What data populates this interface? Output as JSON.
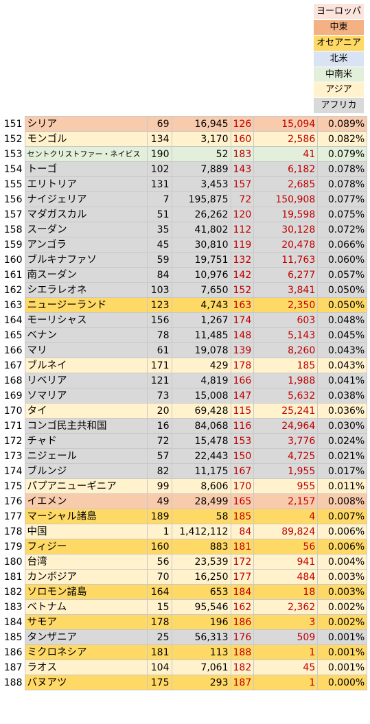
{
  "legend": [
    {
      "label": "ヨーロッパ",
      "color": "#fbe4dc"
    },
    {
      "label": "中東",
      "color": "#f4b183"
    },
    {
      "label": "オセアニア",
      "color": "#ffd966"
    },
    {
      "label": "北米",
      "color": "#dae3f3"
    },
    {
      "label": "中南米",
      "color": "#e2efda"
    },
    {
      "label": "アジア",
      "color": "#fff2cc"
    },
    {
      "label": "アフリカ",
      "color": "#d9d9d9"
    }
  ],
  "rows": [
    {
      "rank": "151",
      "name": "シリア",
      "c1": "69",
      "c2": "16,945",
      "c3": "126",
      "c4": "15,094",
      "c5": "0.089%",
      "color": "#f8cbad"
    },
    {
      "rank": "152",
      "name": "モンゴル",
      "c1": "134",
      "c2": "3,170",
      "c3": "160",
      "c4": "2,586",
      "c5": "0.082%",
      "color": "#fff2cc"
    },
    {
      "rank": "153",
      "name": "セントクリストファー・ネイビス",
      "c1": "190",
      "c2": "52",
      "c3": "183",
      "c4": "41",
      "c5": "0.079%",
      "color": "#e2efda",
      "small": true
    },
    {
      "rank": "154",
      "name": "トーゴ",
      "c1": "102",
      "c2": "7,889",
      "c3": "143",
      "c4": "6,182",
      "c5": "0.078%",
      "color": "#d9d9d9"
    },
    {
      "rank": "155",
      "name": "エリトリア",
      "c1": "131",
      "c2": "3,453",
      "c3": "157",
      "c4": "2,685",
      "c5": "0.078%",
      "color": "#d9d9d9"
    },
    {
      "rank": "156",
      "name": "ナイジェリア",
      "c1": "7",
      "c2": "195,875",
      "c3": "72",
      "c4": "150,908",
      "c5": "0.077%",
      "color": "#d9d9d9"
    },
    {
      "rank": "157",
      "name": "マダガスカル",
      "c1": "51",
      "c2": "26,262",
      "c3": "120",
      "c4": "19,598",
      "c5": "0.075%",
      "color": "#d9d9d9"
    },
    {
      "rank": "158",
      "name": "スーダン",
      "c1": "35",
      "c2": "41,802",
      "c3": "112",
      "c4": "30,128",
      "c5": "0.072%",
      "color": "#d9d9d9"
    },
    {
      "rank": "159",
      "name": "アンゴラ",
      "c1": "45",
      "c2": "30,810",
      "c3": "119",
      "c4": "20,478",
      "c5": "0.066%",
      "color": "#d9d9d9"
    },
    {
      "rank": "160",
      "name": "ブルキナファソ",
      "c1": "59",
      "c2": "19,751",
      "c3": "132",
      "c4": "11,763",
      "c5": "0.060%",
      "color": "#d9d9d9"
    },
    {
      "rank": "161",
      "name": "南スーダン",
      "c1": "84",
      "c2": "10,976",
      "c3": "142",
      "c4": "6,277",
      "c5": "0.057%",
      "color": "#d9d9d9"
    },
    {
      "rank": "162",
      "name": "シエラレオネ",
      "c1": "103",
      "c2": "7,650",
      "c3": "152",
      "c4": "3,841",
      "c5": "0.050%",
      "color": "#d9d9d9"
    },
    {
      "rank": "163",
      "name": "ニュージーランド",
      "c1": "123",
      "c2": "4,743",
      "c3": "163",
      "c4": "2,350",
      "c5": "0.050%",
      "color": "#ffd966"
    },
    {
      "rank": "164",
      "name": "モーリシャス",
      "c1": "156",
      "c2": "1,267",
      "c3": "174",
      "c4": "603",
      "c5": "0.048%",
      "color": "#d9d9d9"
    },
    {
      "rank": "165",
      "name": "ベナン",
      "c1": "78",
      "c2": "11,485",
      "c3": "148",
      "c4": "5,143",
      "c5": "0.045%",
      "color": "#d9d9d9"
    },
    {
      "rank": "166",
      "name": "マリ",
      "c1": "61",
      "c2": "19,078",
      "c3": "139",
      "c4": "8,260",
      "c5": "0.043%",
      "color": "#d9d9d9"
    },
    {
      "rank": "167",
      "name": "ブルネイ",
      "c1": "171",
      "c2": "429",
      "c3": "178",
      "c4": "185",
      "c5": "0.043%",
      "color": "#fff2cc"
    },
    {
      "rank": "168",
      "name": "リベリア",
      "c1": "121",
      "c2": "4,819",
      "c3": "166",
      "c4": "1,988",
      "c5": "0.041%",
      "color": "#d9d9d9"
    },
    {
      "rank": "169",
      "name": "ソマリア",
      "c1": "73",
      "c2": "15,008",
      "c3": "147",
      "c4": "5,632",
      "c5": "0.038%",
      "color": "#d9d9d9"
    },
    {
      "rank": "170",
      "name": "タイ",
      "c1": "20",
      "c2": "69,428",
      "c3": "115",
      "c4": "25,241",
      "c5": "0.036%",
      "color": "#fff2cc"
    },
    {
      "rank": "171",
      "name": "コンゴ民主共和国",
      "c1": "16",
      "c2": "84,068",
      "c3": "116",
      "c4": "24,964",
      "c5": "0.030%",
      "color": "#d9d9d9"
    },
    {
      "rank": "172",
      "name": "チャド",
      "c1": "72",
      "c2": "15,478",
      "c3": "153",
      "c4": "3,776",
      "c5": "0.024%",
      "color": "#d9d9d9"
    },
    {
      "rank": "173",
      "name": "ニジェール",
      "c1": "57",
      "c2": "22,443",
      "c3": "150",
      "c4": "4,725",
      "c5": "0.021%",
      "color": "#d9d9d9"
    },
    {
      "rank": "174",
      "name": "ブルンジ",
      "c1": "82",
      "c2": "11,175",
      "c3": "167",
      "c4": "1,955",
      "c5": "0.017%",
      "color": "#d9d9d9"
    },
    {
      "rank": "175",
      "name": "パプアニューギニア",
      "c1": "99",
      "c2": "8,606",
      "c3": "170",
      "c4": "955",
      "c5": "0.011%",
      "color": "#fff2cc"
    },
    {
      "rank": "176",
      "name": "イエメン",
      "c1": "49",
      "c2": "28,499",
      "c3": "165",
      "c4": "2,157",
      "c5": "0.008%",
      "color": "#f8cbad"
    },
    {
      "rank": "177",
      "name": "マーシャル諸島",
      "c1": "189",
      "c2": "58",
      "c3": "185",
      "c4": "4",
      "c5": "0.007%",
      "color": "#ffd966"
    },
    {
      "rank": "178",
      "name": "中国",
      "c1": "1",
      "c2": "1,412,112",
      "c3": "84",
      "c4": "89,824",
      "c5": "0.006%",
      "color": "#fff2cc"
    },
    {
      "rank": "179",
      "name": "フィジー",
      "c1": "160",
      "c2": "883",
      "c3": "181",
      "c4": "56",
      "c5": "0.006%",
      "color": "#ffd966"
    },
    {
      "rank": "180",
      "name": "台湾",
      "c1": "56",
      "c2": "23,539",
      "c3": "172",
      "c4": "941",
      "c5": "0.004%",
      "color": "#fff2cc"
    },
    {
      "rank": "181",
      "name": "カンボジア",
      "c1": "70",
      "c2": "16,250",
      "c3": "177",
      "c4": "484",
      "c5": "0.003%",
      "color": "#fff2cc"
    },
    {
      "rank": "182",
      "name": "ソロモン諸島",
      "c1": "164",
      "c2": "653",
      "c3": "184",
      "c4": "18",
      "c5": "0.003%",
      "color": "#ffd966"
    },
    {
      "rank": "183",
      "name": "ベトナム",
      "c1": "15",
      "c2": "95,546",
      "c3": "162",
      "c4": "2,362",
      "c5": "0.002%",
      "color": "#fff2cc"
    },
    {
      "rank": "184",
      "name": "サモア",
      "c1": "178",
      "c2": "196",
      "c3": "186",
      "c4": "3",
      "c5": "0.002%",
      "color": "#ffd966"
    },
    {
      "rank": "185",
      "name": "タンザニア",
      "c1": "25",
      "c2": "56,313",
      "c3": "176",
      "c4": "509",
      "c5": "0.001%",
      "color": "#d9d9d9"
    },
    {
      "rank": "186",
      "name": "ミクロネシア",
      "c1": "181",
      "c2": "113",
      "c3": "188",
      "c4": "1",
      "c5": "0.001%",
      "color": "#ffd966"
    },
    {
      "rank": "187",
      "name": "ラオス",
      "c1": "104",
      "c2": "7,061",
      "c3": "182",
      "c4": "45",
      "c5": "0.001%",
      "color": "#fff2cc"
    },
    {
      "rank": "188",
      "name": "バヌアツ",
      "c1": "175",
      "c2": "293",
      "c3": "187",
      "c4": "1",
      "c5": "0.000%",
      "color": "#ffd966"
    }
  ]
}
